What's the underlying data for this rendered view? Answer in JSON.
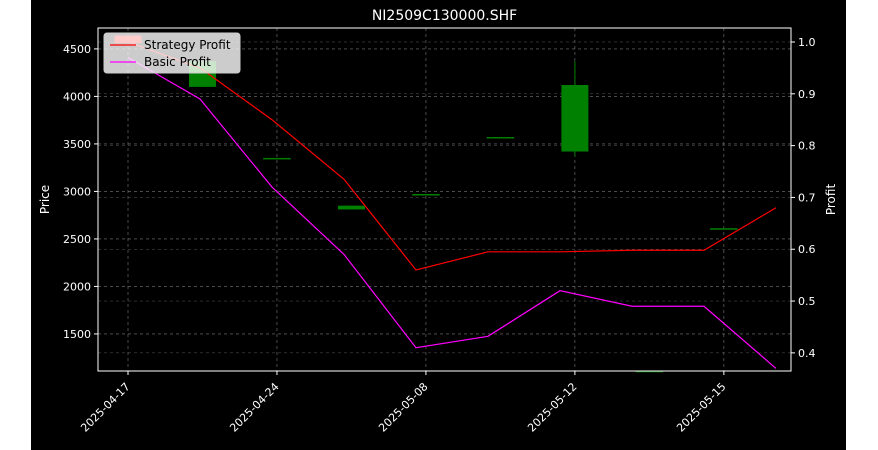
{
  "chart_data": {
    "type": "candlestick-with-lines",
    "title": "NI2509C130000.SHF",
    "xlabel": "",
    "ylabel_left": "Price",
    "ylabel_right": "Profit",
    "x_tick_labels": [
      "2025-04-17",
      "2025-04-24",
      "2025-05-08",
      "2025-05-12",
      "2025-05-15"
    ],
    "y_left_ticks": [
      1500,
      2000,
      2500,
      3000,
      3500,
      4000,
      4500
    ],
    "y_left_lim": [
      1110,
      4720
    ],
    "y_right_ticks": [
      0.4,
      0.5,
      0.6,
      0.7,
      0.8,
      0.9,
      1.0
    ],
    "y_right_lim": [
      0.365,
      1.027
    ],
    "grid": true,
    "legend_position": "top-left",
    "candles": [
      {
        "x": 0,
        "open": 4640,
        "close": 4560,
        "high": 4640,
        "low": 4560
      },
      {
        "x": 1,
        "open": 4100,
        "close": 4370,
        "high": 4370,
        "low": 4100
      },
      {
        "x": 2,
        "open": 3350,
        "close": 3350,
        "high": 3350,
        "low": 3350
      },
      {
        "x": 3,
        "open": 2810,
        "close": 2850,
        "high": 2850,
        "low": 2810
      },
      {
        "x": 4,
        "open": 2970,
        "close": 2970,
        "high": 2970,
        "low": 2970
      },
      {
        "x": 5,
        "open": 3570,
        "close": 3570,
        "high": 3570,
        "low": 3570
      },
      {
        "x": 6,
        "open": 3420,
        "close": 4120,
        "high": 4370,
        "low": 3370
      },
      {
        "x": 7,
        "open": 1110,
        "close": 1110,
        "high": 1110,
        "low": 1110
      },
      {
        "x": 8,
        "open": 2610,
        "close": 2610,
        "high": 2610,
        "low": 2610
      }
    ],
    "series": [
      {
        "name": "Strategy Profit",
        "color": "#ff0000",
        "values": [
          1.0,
          0.95,
          0.85,
          0.735,
          0.56,
          0.595,
          0.595,
          0.598,
          0.598,
          0.68
        ]
      },
      {
        "name": "Basic Profit",
        "color": "#ff00ff",
        "values": [
          0.97,
          0.89,
          0.72,
          0.59,
          0.41,
          0.432,
          0.52,
          0.49,
          0.49,
          0.37
        ]
      }
    ],
    "up_color": "#008000",
    "down_color": "#ff0000"
  }
}
